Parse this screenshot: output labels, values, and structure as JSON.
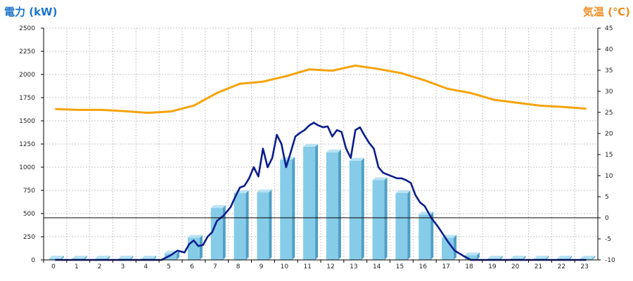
{
  "header": {
    "left_title": "電力 (kW)",
    "right_title": "気温 (℃)"
  },
  "colors": {
    "left_title": "#1a73c9",
    "right_title": "#f08a1c",
    "bar_front": "#86cce8",
    "bar_side": "#4f9fc4",
    "bar_top": "#b8e3f4",
    "power_line": "#0b1d8c",
    "temperature_line": "#f5a30a",
    "grid": "#c8c8c8",
    "axis": "#000000"
  },
  "chart_data": {
    "type": "bar",
    "categories": [
      "0",
      "1",
      "2",
      "3",
      "4",
      "5",
      "6",
      "7",
      "8",
      "9",
      "10",
      "11",
      "12",
      "13",
      "14",
      "15",
      "16",
      "17",
      "18",
      "19",
      "20",
      "21",
      "22",
      "23"
    ],
    "left_axis": {
      "ylim": [
        0,
        2500
      ],
      "ticks": [
        "0",
        "250",
        "500",
        "750",
        "1000",
        "1250",
        "1500",
        "1750",
        "2000",
        "2250",
        "2500"
      ]
    },
    "right_axis": {
      "ylim": [
        -10,
        45
      ],
      "ticks": [
        "-10",
        "-5",
        "0",
        "5",
        "10",
        "15",
        "20",
        "25",
        "30",
        "35",
        "40",
        "45"
      ]
    },
    "grid": true,
    "series": [
      {
        "kind": "bar",
        "axis": "left",
        "values": [
          15,
          15,
          15,
          15,
          15,
          70,
          240,
          560,
          720,
          730,
          1080,
          1220,
          1160,
          1070,
          860,
          720,
          490,
          240,
          50,
          15,
          15,
          15,
          15,
          15
        ]
      },
      {
        "kind": "line",
        "axis": "left",
        "x": [
          0,
          1,
          2,
          3,
          4,
          4.6,
          5,
          5.3,
          5.6,
          5.8,
          6,
          6.2,
          6.4,
          6.6,
          6.8,
          7,
          7.3,
          7.6,
          7.8,
          8,
          8.2,
          8.4,
          8.6,
          8.8,
          9,
          9.2,
          9.4,
          9.6,
          9.8,
          10,
          10.2,
          10.4,
          10.6,
          10.8,
          11,
          11.2,
          11.4,
          11.6,
          11.8,
          12,
          12.2,
          12.4,
          12.6,
          12.8,
          13,
          13.2,
          13.4,
          13.6,
          13.8,
          14,
          14.2,
          14.4,
          14.6,
          14.8,
          15,
          15.2,
          15.4,
          15.6,
          15.8,
          16,
          16.3,
          16.6,
          17,
          17.3,
          17.7,
          18,
          19,
          20,
          21,
          22,
          23
        ],
        "values": [
          0,
          0,
          0,
          0,
          0,
          0,
          50,
          100,
          80,
          170,
          210,
          150,
          160,
          250,
          300,
          420,
          480,
          570,
          680,
          780,
          800,
          880,
          1000,
          900,
          1200,
          1000,
          1100,
          1350,
          1250,
          1000,
          1160,
          1330,
          1370,
          1400,
          1450,
          1480,
          1450,
          1430,
          1440,
          1330,
          1400,
          1380,
          1200,
          1100,
          1400,
          1430,
          1340,
          1260,
          1200,
          1000,
          940,
          920,
          900,
          880,
          880,
          860,
          830,
          700,
          620,
          580,
          450,
          350,
          200,
          100,
          40,
          0,
          0,
          0,
          0,
          0,
          0
        ]
      },
      {
        "kind": "line",
        "axis": "right",
        "x": [
          0,
          1,
          2,
          3,
          4,
          5,
          6,
          7,
          8,
          9,
          10,
          11,
          12,
          13,
          14,
          15,
          16,
          17,
          18,
          19,
          20,
          21,
          22,
          23
        ],
        "values": [
          25.8,
          25.6,
          25.6,
          25.3,
          24.9,
          25.2,
          26.6,
          29.6,
          31.8,
          32.3,
          33.6,
          35.2,
          34.9,
          36.1,
          35.3,
          34.3,
          32.6,
          30.6,
          29.6,
          28.0,
          27.3,
          26.6,
          26.3,
          25.9
        ]
      }
    ]
  }
}
